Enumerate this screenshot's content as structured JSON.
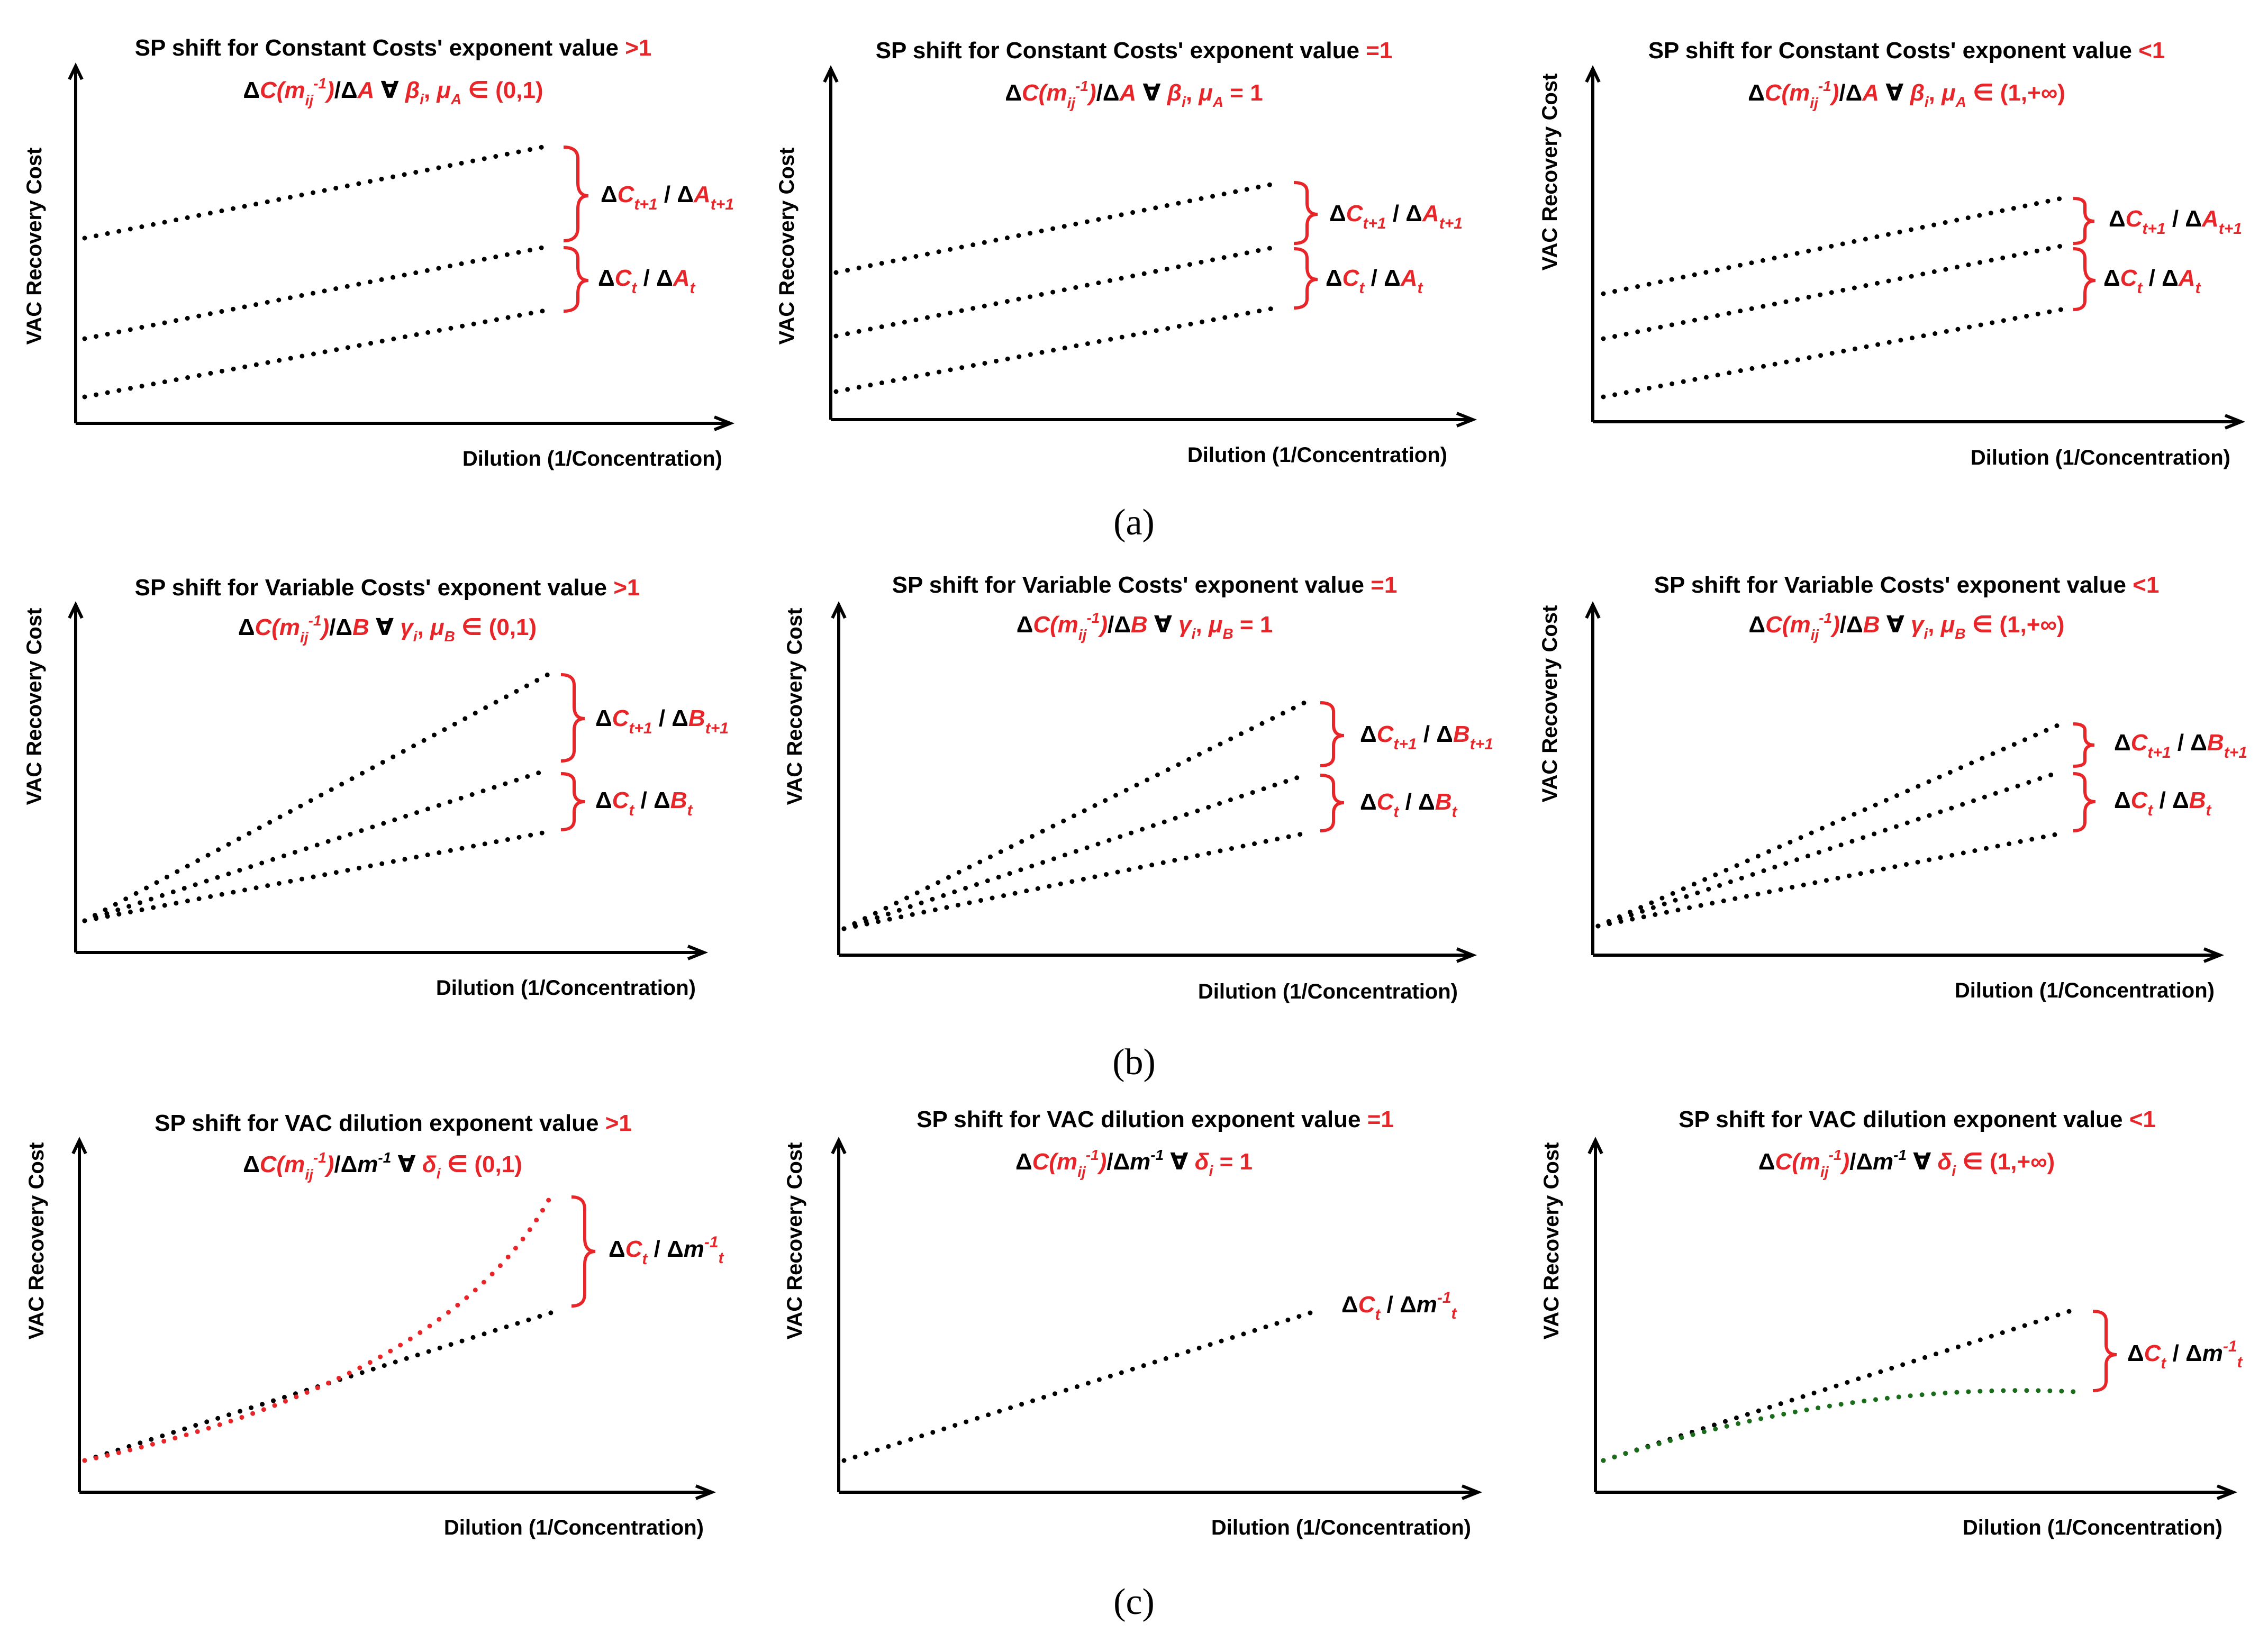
{
  "colors": {
    "black": "#000000",
    "red": "#e8262a",
    "green": "#1a6b1a"
  },
  "common": {
    "y_axis_label": "VAC Recovery Cost",
    "x_axis_label": "Dilution (1/Concentration)"
  },
  "rows": [
    {
      "caption": "(a)",
      "panels": [
        {
          "title_prefix": "SP shift for Constant Costs' exponent value ",
          "title_suffix": ">1",
          "formula": "ΔC(mij-1)/ΔA ∀ βi, μA ∈ (0,1)",
          "brace_labels": [
            "ΔCt+1 / ΔAt+1",
            "ΔCt / ΔAt"
          ]
        },
        {
          "title_prefix": "SP shift for Constant Costs' exponent value ",
          "title_suffix": "=1",
          "formula": "ΔC(mij-1)/ΔA ∀ βi, μA = 1",
          "brace_labels": [
            "ΔCt+1 / ΔAt+1",
            "ΔCt / ΔAt"
          ]
        },
        {
          "title_prefix": "SP shift for Constant Costs' exponent value ",
          "title_suffix": "<1",
          "formula": "ΔC(mij-1)/ΔA ∀ βi, μA ∈ (1,+∞)",
          "brace_labels": [
            "ΔCt+1 / ΔAt+1",
            "ΔCt / ΔAt"
          ]
        }
      ]
    },
    {
      "caption": "(b)",
      "panels": [
        {
          "title_prefix": "SP shift for Variable Costs' exponent value ",
          "title_suffix": ">1",
          "formula": "ΔC(mij-1)/ΔB ∀ γi, μB ∈ (0,1)",
          "brace_labels": [
            "ΔCt+1 / ΔBt+1",
            "ΔCt / ΔBt"
          ]
        },
        {
          "title_prefix": "SP shift for Variable Costs' exponent value ",
          "title_suffix": "=1",
          "formula": "ΔC(mij-1)/ΔB ∀ γi, μB = 1",
          "brace_labels": [
            "ΔCt+1 / ΔBt+1",
            "ΔCt / ΔBt"
          ]
        },
        {
          "title_prefix": "SP shift for Variable Costs' exponent value ",
          "title_suffix": "<1",
          "formula": "ΔC(mij-1)/ΔB ∀ γi, μB ∈ (1,+∞)",
          "brace_labels": [
            "ΔCt+1 / ΔBt+1",
            "ΔCt / ΔBt"
          ]
        }
      ]
    },
    {
      "caption": "(c)",
      "panels": [
        {
          "title_prefix": "SP shift for VAC dilution exponent value ",
          "title_suffix": ">1",
          "formula": "ΔC(mij-1)/Δm-1 ∀ δi ∈ (0,1)",
          "brace_labels": [
            "ΔCt / Δm-1t"
          ]
        },
        {
          "title_prefix": "SP shift for VAC dilution exponent value ",
          "title_suffix": "=1",
          "formula": "ΔC(mij-1)/Δm-1 ∀ δi = 1",
          "brace_labels": [
            "ΔCt / Δm-1t"
          ]
        },
        {
          "title_prefix": "SP shift for VAC dilution exponent value ",
          "title_suffix": "<1",
          "formula": "ΔC(mij-1)/Δm-1 ∀ δi ∈ (1,+∞)",
          "brace_labels": [
            "ΔCt / Δm-1t"
          ]
        }
      ]
    }
  ]
}
